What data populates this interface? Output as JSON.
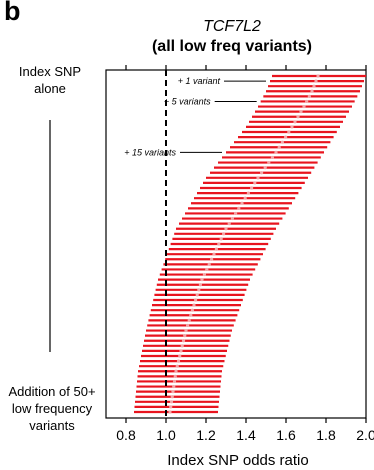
{
  "panel_letter": "b",
  "chart_data": {
    "type": "forest",
    "title": "TCF7L2",
    "subtitle": "(all low freq variants)",
    "xlabel": "Index SNP odds ratio",
    "xlim": [
      0.7,
      2.0
    ],
    "x_ticks": [
      "0.8",
      "1.0",
      "1.2",
      "1.4",
      "1.6",
      "1.8",
      "2.0"
    ],
    "x_tick_values": [
      0.8,
      1.0,
      1.2,
      1.4,
      1.6,
      1.8,
      2.0
    ],
    "reference_line": 1.0,
    "y_top_label": "Index SNP alone",
    "y_bottom_label": "Addition of 50+ low frequency variants",
    "annotations": [
      {
        "text": "+ 1 variant",
        "row": 1
      },
      {
        "text": "+ 5 variants",
        "row": 5
      },
      {
        "text": "+ 15 variants",
        "row": 15
      }
    ],
    "colors": {
      "interval": "#e8141e",
      "point": "#f4a6a8",
      "reference": "#000000"
    },
    "n_rows": 67,
    "anchors": [
      {
        "row": 0,
        "lower": 1.53,
        "point": 1.76,
        "upper": 2.0
      },
      {
        "row": 3,
        "lower": 1.5,
        "point": 1.73,
        "upper": 1.97
      },
      {
        "row": 6,
        "lower": 1.46,
        "point": 1.69,
        "upper": 1.93
      },
      {
        "row": 10,
        "lower": 1.4,
        "point": 1.63,
        "upper": 1.87
      },
      {
        "row": 15,
        "lower": 1.3,
        "point": 1.55,
        "upper": 1.79
      },
      {
        "row": 20,
        "lower": 1.2,
        "point": 1.46,
        "upper": 1.71
      },
      {
        "row": 30,
        "lower": 1.05,
        "point": 1.3,
        "upper": 1.55
      },
      {
        "row": 40,
        "lower": 0.96,
        "point": 1.18,
        "upper": 1.42
      },
      {
        "row": 50,
        "lower": 0.9,
        "point": 1.1,
        "upper": 1.33
      },
      {
        "row": 58,
        "lower": 0.86,
        "point": 1.05,
        "upper": 1.28
      },
      {
        "row": 66,
        "lower": 0.84,
        "point": 1.02,
        "upper": 1.26
      }
    ]
  }
}
